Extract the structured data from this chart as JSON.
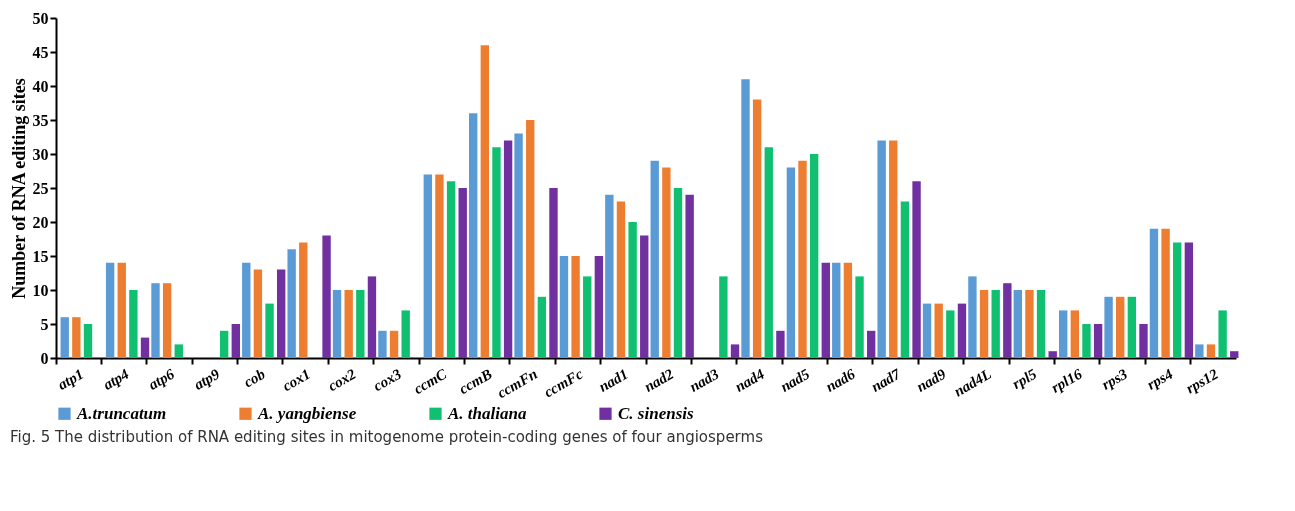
{
  "chart_data": {
    "type": "bar",
    "title": "Fig. 5  The distribution of RNA editing sites in mitogenome protein-coding genes of four angiosperms",
    "ylabel": "Number of RNA editing sites",
    "categories": [
      "atp1",
      "atp4",
      "atp6",
      "atp9",
      "cob",
      "cox1",
      "cox2",
      "cox3",
      "ccmC",
      "ccmB",
      "ccmFn",
      "ccmFc",
      "nad1",
      "nad2",
      "nad3",
      "nad4",
      "nad5",
      "nad6",
      "nad7",
      "nad9",
      "nad4L",
      "rpl5",
      "rpl16",
      "rps3",
      "rps4",
      "rps12"
    ],
    "series": [
      {
        "name": "A.truncatum",
        "color": "#5b9bd5",
        "values": [
          6,
          14,
          11,
          0,
          14,
          16,
          10,
          4,
          27,
          36,
          33,
          15,
          24,
          29,
          0,
          41,
          28,
          14,
          32,
          8,
          12,
          10,
          7,
          9,
          19,
          2
        ]
      },
      {
        "name": "A. yangbiense",
        "color": "#ed7d31",
        "values": [
          6,
          14,
          11,
          0,
          13,
          17,
          10,
          4,
          27,
          46,
          35,
          15,
          23,
          28,
          0,
          38,
          29,
          14,
          32,
          8,
          10,
          10,
          7,
          9,
          19,
          2
        ]
      },
      {
        "name": "A. thaliana",
        "color": "#10c070",
        "values": [
          5,
          10,
          2,
          4,
          8,
          0,
          10,
          7,
          26,
          31,
          9,
          12,
          20,
          25,
          12,
          31,
          30,
          12,
          23,
          7,
          10,
          10,
          5,
          9,
          17,
          7
        ]
      },
      {
        "name": "C. sinensis",
        "color": "#7030a0",
        "values": [
          0,
          3,
          0,
          5,
          13,
          18,
          12,
          0,
          25,
          32,
          25,
          15,
          18,
          24,
          2,
          4,
          14,
          4,
          26,
          8,
          11,
          1,
          5,
          5,
          17,
          1
        ]
      }
    ],
    "ylim": [
      0,
      50
    ],
    "yticks": [
      0,
      5,
      10,
      15,
      20,
      25,
      30,
      35,
      40,
      45,
      50
    ],
    "grid": false,
    "legend": "bottom"
  }
}
